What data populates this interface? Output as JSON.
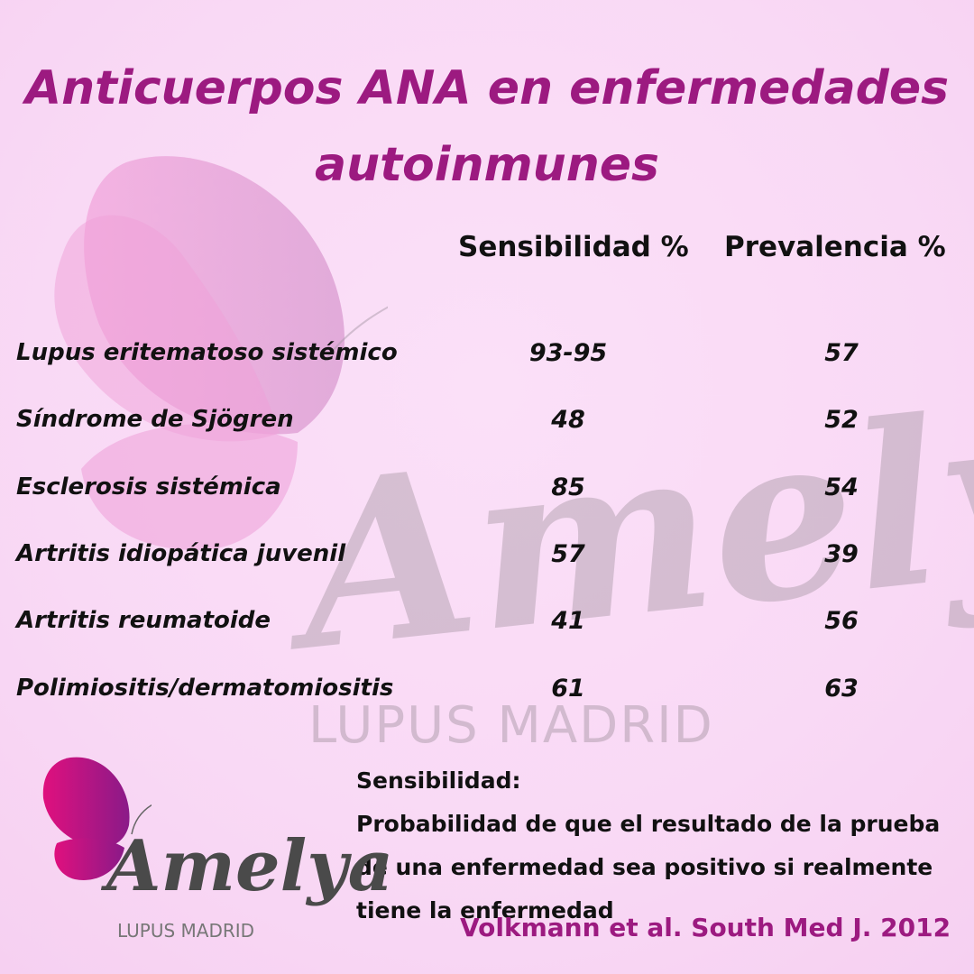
{
  "title": {
    "line1": "Anticuerpos ANA en enfermedades",
    "line2": "autoinmunes"
  },
  "columns": {
    "sensitivity": "Sensibilidad %",
    "prevalence": "Prevalencia %"
  },
  "rows": [
    {
      "disease": "Lupus eritematoso sistémico",
      "sensitivity": "93-95",
      "prevalence": "57"
    },
    {
      "disease": "Síndrome de Sjögren",
      "sensitivity": "48",
      "prevalence": "52"
    },
    {
      "disease": "Esclerosis sistémica",
      "sensitivity": "85",
      "prevalence": "54"
    },
    {
      "disease": "Artritis idiopática juvenil",
      "sensitivity": "57",
      "prevalence": "39"
    },
    {
      "disease": "Artritis reumatoide",
      "sensitivity": "41",
      "prevalence": "56"
    },
    {
      "disease": "Polimiositis/dermatomiositis",
      "sensitivity": "61",
      "prevalence": "63"
    }
  ],
  "definition": {
    "heading": "Sensibilidad:",
    "lines": [
      "Probabilidad de que el resultado de la prueba",
      "de una enfermedad sea positivo si realmente",
      "tiene la enfermedad"
    ]
  },
  "citation": "Volkmann et al. South Med J. 2012",
  "watermark": {
    "name": "Amelya",
    "subtitle": "LUPUS MADRID"
  },
  "logo": {
    "name": "Amelya",
    "subtitle": "LUPUS MADRID"
  },
  "colors": {
    "title": "#9c1a80",
    "background": "#fbdcf8",
    "butterfly": "#d0187f"
  }
}
